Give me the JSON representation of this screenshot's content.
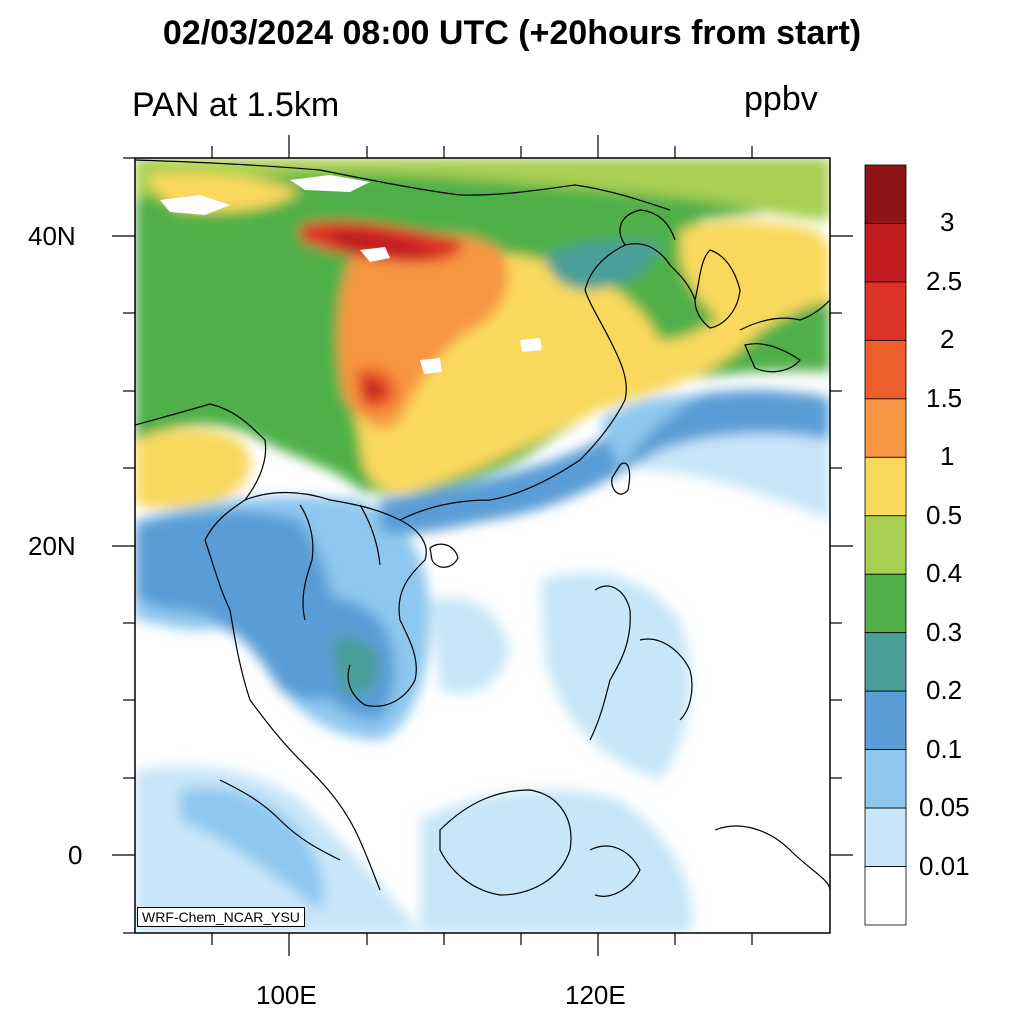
{
  "title": "02/03/2024 08:00 UTC (+20hours from start)",
  "left_title": "PAN at 1.5km",
  "units": "ppbv",
  "credit": "WRF-Chem_NCAR_YSU",
  "lat_labels": [
    "40N",
    "20N",
    "0"
  ],
  "lon_labels": [
    "100E",
    "120E"
  ],
  "colorbar": {
    "labels": [
      "3",
      "2.5",
      "2",
      "1.5",
      "1",
      "0.5",
      "0.4",
      "0.3",
      "0.2",
      "0.1",
      "0.05",
      "0.01"
    ],
    "colors": [
      "#8e1516",
      "#c21e22",
      "#dd3227",
      "#ec5e2b",
      "#f79642",
      "#f9d95d",
      "#a9cf52",
      "#4fb04a",
      "#4a9f99",
      "#5a9dd6",
      "#8ec8ef",
      "#c8e6f8",
      "#ffffff"
    ]
  },
  "map": {
    "lon_range": [
      90,
      135
    ],
    "lat_range": [
      -5,
      45
    ]
  }
}
